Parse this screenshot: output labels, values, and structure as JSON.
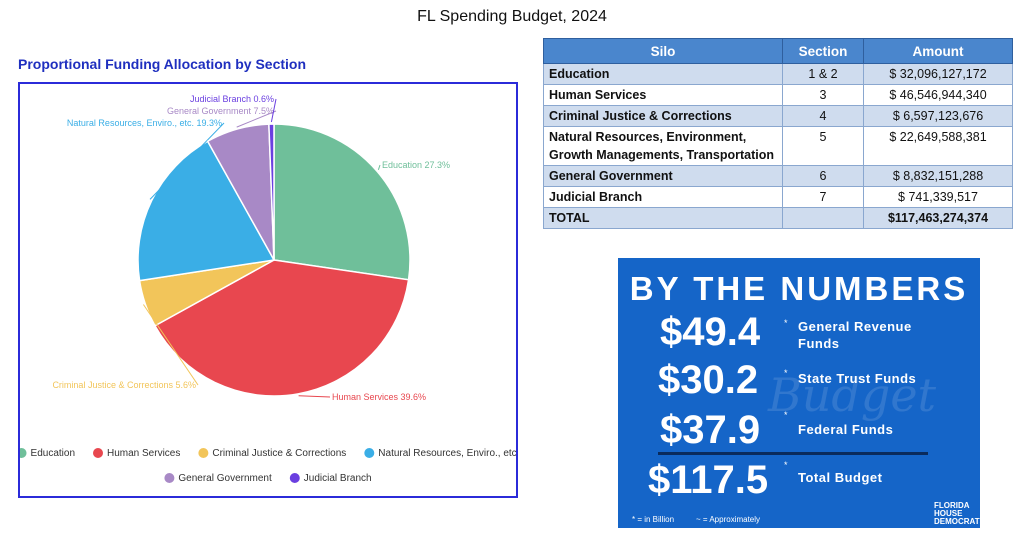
{
  "page_title": "FL Spending Budget, 2024",
  "chart_data": {
    "type": "pie",
    "title": "Proportional Funding Allocation by Section",
    "slices": [
      {
        "label": "Education",
        "value": 27.3,
        "label_text": "Education 27.3%",
        "color": "#6fbf9a"
      },
      {
        "label": "Human Services",
        "value": 39.6,
        "label_text": "Human Services 39.6%",
        "color": "#e8474f"
      },
      {
        "label": "Criminal Justice & Corrections",
        "value": 5.6,
        "label_text": "Criminal Justice & Corrections 5.6%",
        "color": "#f2c55a"
      },
      {
        "label": "Natural Resources, Enviro., etc.",
        "value": 19.3,
        "label_text": "Natural Resources, Enviro., etc. 19.3%",
        "color": "#3aaee6"
      },
      {
        "label": "General Government",
        "value": 7.5,
        "label_text": "General Government 7.5%",
        "color": "#a889c6"
      },
      {
        "label": "Judicial Branch",
        "value": 0.6,
        "label_text": "Judicial Branch 0.6%",
        "color": "#6a3fe0"
      }
    ],
    "legend_position": "bottom"
  },
  "table": {
    "headers": [
      "Silo",
      "Section",
      "Amount"
    ],
    "rows": [
      {
        "silo": "Education",
        "section": "1 & 2",
        "amount": "$ 32,096,127,172"
      },
      {
        "silo": "Human Services",
        "section": "3",
        "amount": "$ 46,546,944,340"
      },
      {
        "silo": "Criminal Justice & Corrections",
        "section": "4",
        "amount": "$ 6,597,123,676"
      },
      {
        "silo": "Natural Resources, Environment, Growth Managements, Transportation",
        "section": "5",
        "amount": "$ 22,649,588,381"
      },
      {
        "silo": "General Government",
        "section": "6",
        "amount": "$ 8,832,151,288"
      },
      {
        "silo": "Judicial Branch",
        "section": "7",
        "amount": "$ 741,339,517"
      }
    ],
    "total": {
      "label": "TOTAL",
      "section": "",
      "amount": "$117,463,274,374"
    }
  },
  "by_the_numbers": {
    "heading": "BY THE NUMBERS",
    "ghost_text": "Budget",
    "items": [
      {
        "value": "$49.4",
        "marker": "*",
        "label": "General Revenue Funds"
      },
      {
        "value": "$30.2",
        "marker": "*",
        "label": "State Trust Funds"
      },
      {
        "value": "$37.9",
        "marker": "*",
        "label": "Federal Funds"
      },
      {
        "value": "$117.5",
        "marker": "*",
        "label": "Total Budget"
      }
    ],
    "footnote_billion": "* = in Billion",
    "footnote_approx": "~ = Approximately",
    "logo_lines": [
      "FLORIDA",
      "HOUSE",
      "DEMOCRATS"
    ]
  }
}
